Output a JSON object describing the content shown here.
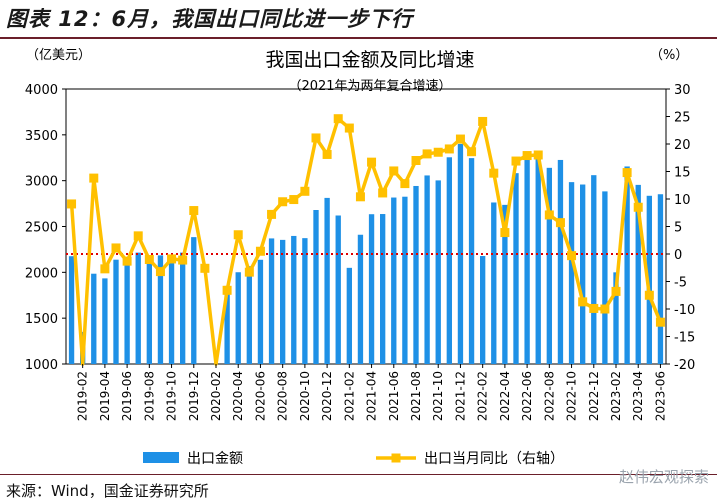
{
  "header": {
    "title": "图表 12：6月，我国出口同比进一步下行"
  },
  "footer": {
    "source": "来源：Wind，国金证券研究所",
    "watermark": "赵伟宏观探索"
  },
  "colors": {
    "bar": "#1e90e6",
    "line": "#ffc000",
    "zero_line": "#e00000",
    "rule": "#6b1f2a"
  },
  "chart_data": {
    "type": "bar",
    "title": "我国出口金额及同比增速",
    "subtitle": "（2021年为两年复合增速）",
    "left_unit": "（亿美元）",
    "right_unit": "（%）",
    "left_ylim": [
      1000,
      4000
    ],
    "left_ticks": [
      1000,
      1500,
      2000,
      2500,
      3000,
      3500,
      4000
    ],
    "right_ylim": [
      -20,
      30
    ],
    "right_ticks": [
      -20,
      -15,
      -10,
      -5,
      0,
      5,
      10,
      15,
      20,
      25,
      30
    ],
    "x_tick_labels": [
      "2019-02",
      "2019-04",
      "2019-06",
      "2019-08",
      "2019-10",
      "2019-12",
      "2020-02",
      "2020-04",
      "2020-06",
      "2020-08",
      "2020-10",
      "2020-12",
      "2021-02",
      "2021-04",
      "2021-06",
      "2021-08",
      "2021-10",
      "2021-12",
      "2022-02",
      "2022-04",
      "2022-06",
      "2022-08",
      "2022-10",
      "2022-12",
      "2023-02",
      "2023-04",
      "2023-06"
    ],
    "categories": [
      "2019-01",
      "2019-02",
      "2019-03",
      "2019-04",
      "2019-05",
      "2019-06",
      "2019-07",
      "2019-08",
      "2019-09",
      "2019-10",
      "2019-11",
      "2019-12",
      "2020-01",
      "2020-02",
      "2020-03",
      "2020-04",
      "2020-05",
      "2020-06",
      "2020-07",
      "2020-08",
      "2020-09",
      "2020-10",
      "2020-11",
      "2020-12",
      "2021-01",
      "2021-02",
      "2021-03",
      "2021-04",
      "2021-05",
      "2021-06",
      "2021-07",
      "2021-08",
      "2021-09",
      "2021-10",
      "2021-11",
      "2021-12",
      "2022-01",
      "2022-02",
      "2022-03",
      "2022-04",
      "2022-05",
      "2022-06",
      "2022-07",
      "2022-08",
      "2022-09",
      "2022-10",
      "2022-11",
      "2022-12",
      "2023-01",
      "2023-02",
      "2023-03",
      "2023-04",
      "2023-05",
      "2023-06"
    ],
    "series": [
      {
        "name": "出口金额",
        "type": "bar",
        "axis": "left",
        "values": [
          2176,
          1350,
          1985,
          1934,
          2138,
          2129,
          2215,
          2148,
          2185,
          2129,
          2215,
          2384,
          1000,
          1000,
          1852,
          2001,
          2067,
          2137,
          2370,
          2354,
          2397,
          2373,
          2680,
          2812,
          2620,
          2049,
          2410,
          2634,
          2636,
          2816,
          2825,
          2942,
          3057,
          3003,
          3255,
          3401,
          3246,
          2178,
          2762,
          2736,
          3082,
          3312,
          3327,
          3140,
          3226,
          2984,
          2958,
          3060,
          2883,
          2000,
          3155,
          2954,
          2835,
          2852
        ]
      },
      {
        "name": "出口当月同比（右轴）",
        "type": "line",
        "axis": "right",
        "values": [
          9.1,
          -20.7,
          13.8,
          -2.7,
          1.1,
          -1.3,
          3.3,
          -1.0,
          -3.2,
          -0.9,
          -1.1,
          7.9,
          -2.6,
          -40.6,
          -6.6,
          3.5,
          -3.3,
          0.5,
          7.2,
          9.5,
          9.9,
          11.4,
          21.1,
          18.1,
          24.6,
          22.9,
          10.4,
          16.7,
          11.1,
          15.1,
          12.8,
          17.0,
          18.2,
          18.5,
          19.1,
          20.9,
          18.6,
          24.1,
          14.7,
          3.9,
          16.9,
          17.9,
          18.0,
          7.1,
          5.7,
          -0.3,
          -8.7,
          -9.9,
          -10.0,
          -6.8,
          14.8,
          8.5,
          -7.5,
          -12.4
        ]
      }
    ],
    "legend": {
      "position": "bottom",
      "entries": [
        "出口金额",
        "出口当月同比（右轴）"
      ]
    }
  }
}
